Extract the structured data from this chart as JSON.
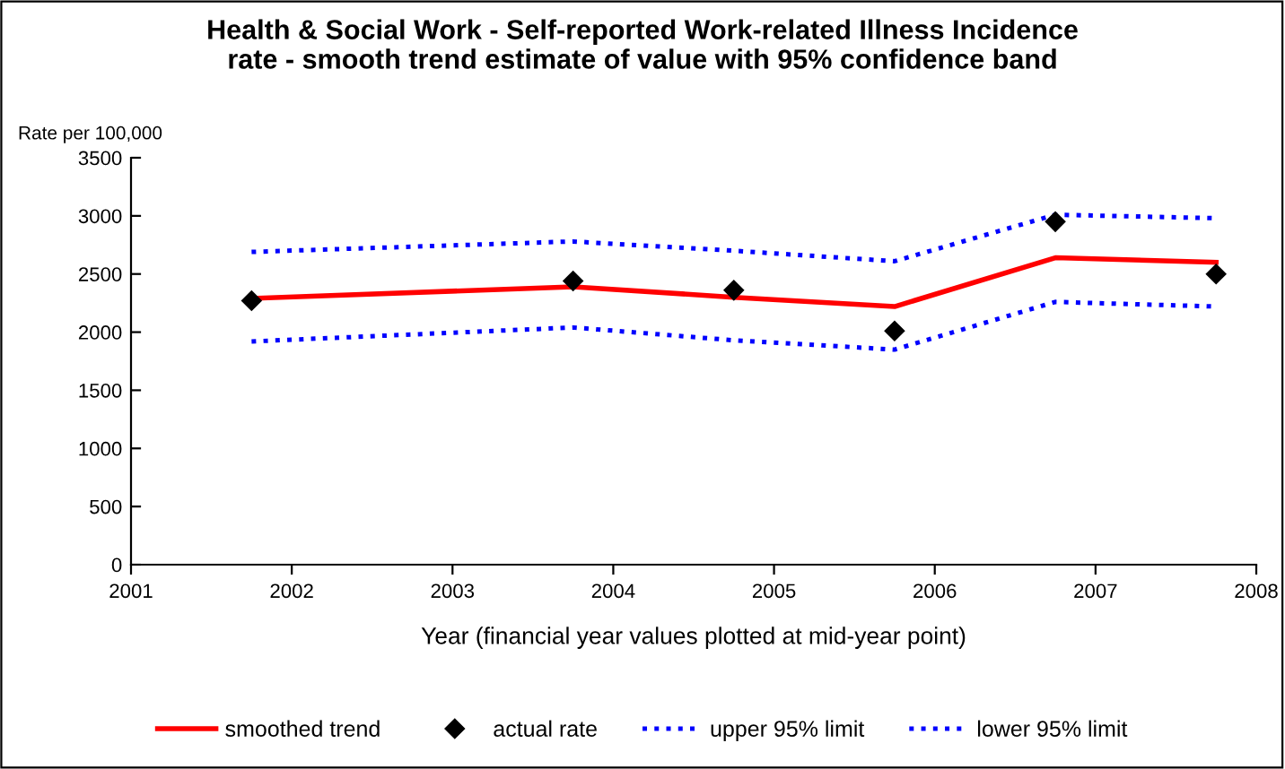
{
  "chart_data": {
    "type": "line",
    "title": "Health & Social Work - Self-reported Work-related Illness Incidence\nrate - smooth trend estimate of value with 95% confidence band",
    "ylabel": "Rate per 100,000",
    "xlabel": "Year (financial year values plotted at mid-year point)",
    "x": [
      2001.75,
      2003.75,
      2004.75,
      2005.75,
      2006.75,
      2007.75
    ],
    "series": [
      {
        "name": "smoothed trend",
        "color": "#ff0000",
        "line_style": "solid",
        "marker": "none",
        "values": [
          2290,
          2390,
          2300,
          2220,
          2640,
          2600
        ]
      },
      {
        "name": "actual rate",
        "type": "scatter",
        "color": "#000000",
        "marker": "diamond",
        "values": [
          2270,
          2440,
          2360,
          2010,
          2950,
          2500
        ]
      },
      {
        "name": "upper 95% limit",
        "color": "#0000ff",
        "line_style": "dotted",
        "marker": "none",
        "values": [
          2690,
          2780,
          2700,
          2610,
          3010,
          2980
        ]
      },
      {
        "name": "lower 95% limit",
        "color": "#0000ff",
        "line_style": "dotted",
        "marker": "none",
        "values": [
          1920,
          2040,
          1930,
          1850,
          2260,
          2220
        ]
      }
    ],
    "xlim": [
      2001,
      2008
    ],
    "xticks": [
      2001,
      2002,
      2003,
      2004,
      2005,
      2006,
      2007,
      2008
    ],
    "ylim": [
      0,
      3500
    ],
    "yticks": [
      0,
      500,
      1000,
      1500,
      2000,
      2500,
      3000,
      3500
    ],
    "grid": false,
    "legend": "bottom"
  }
}
